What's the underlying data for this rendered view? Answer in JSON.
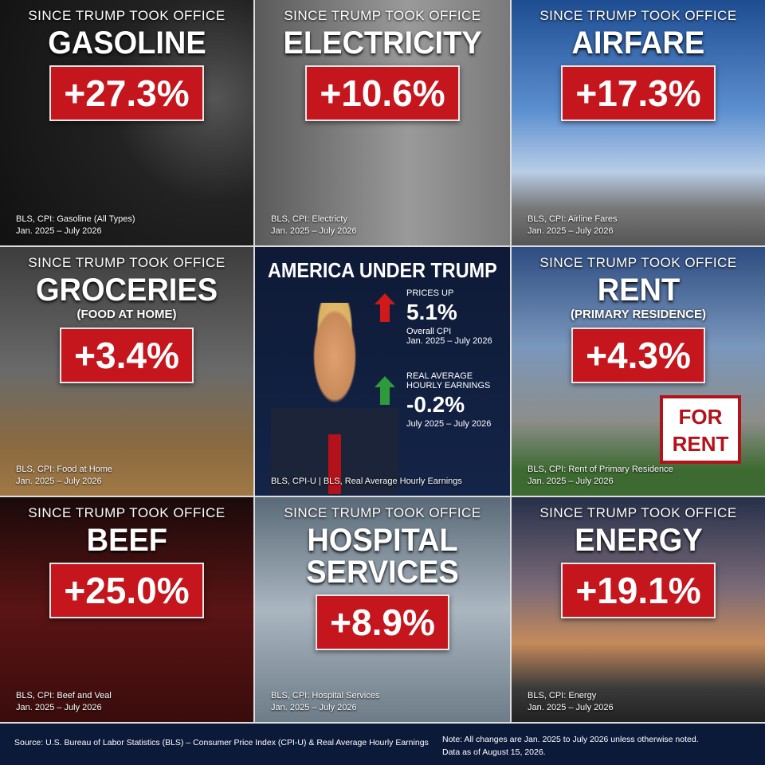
{
  "tiles": [
    {
      "kicker": "SINCE TRUMP TOOK OFFICE",
      "title": "GASOLINE",
      "change": "+27.3%",
      "source": "BLS, CPI: Gasoline (All Types)",
      "period": "Jan. 2025 – July 2026"
    },
    {
      "kicker": "SINCE TRUMP TOOK OFFICE",
      "title": "ELECTRICITY",
      "change": "+10.6%",
      "source": "BLS, CPI: Electricty",
      "period": "Jan. 2025 – July 2026"
    },
    {
      "kicker": "SINCE TRUMP TOOK OFFICE",
      "title": "AIRFARE",
      "change": "+17.3%",
      "source": "BLS, CPI: Airline Fares",
      "period": "Jan. 2025 – July 2026"
    },
    {
      "kicker": "SINCE TRUMP TOOK OFFICE",
      "title": "GROCERIES",
      "subtitle": "(FOOD AT HOME)",
      "change": "+3.4%",
      "source": "BLS, CPI: Food at Home",
      "period": "Jan. 2025 – July 2026"
    },
    {
      "center": true,
      "title": "AMERICA UNDER TRUMP",
      "items": [
        {
          "label": "PRICES UP",
          "value": "5.1%",
          "sub": "Overall CPI",
          "period": "Jan. 2025 – July 2026"
        },
        {
          "label": "REAL AVERAGE HOURLY EARNINGS",
          "value": "-0.2%",
          "period": "July 2025 – July 2026"
        }
      ],
      "source": "BLS, CPI-U | BLS, Real Average Hourly Earnings"
    },
    {
      "kicker": "SINCE TRUMP TOOK OFFICE",
      "title": "RENT",
      "subtitle": "(PRIMARY RESIDENCE)",
      "change": "+4.3%",
      "sign": [
        "FOR",
        "RENT"
      ],
      "source": "BLS, CPI: Rent of Primary Residence",
      "period": "Jan. 2025 – July 2026"
    },
    {
      "kicker": "SINCE TRUMP TOOK OFFICE",
      "title": "BEEF",
      "change": "+25.0%",
      "source": "BLS, CPI: Beef and Veal",
      "period": "Jan. 2025 – July 2026"
    },
    {
      "kicker": "SINCE TRUMP TOOK OFFICE",
      "title": "HOSPITAL SERVICES",
      "change": "+8.9%",
      "source": "BLS, CPI: Hospital Services",
      "period": "Jan. 2025 – July 2026"
    },
    {
      "kicker": "SINCE TRUMP TOOK OFFICE",
      "title": "ENERGY",
      "change": "+19.1%",
      "source": "BLS, CPI: Energy",
      "period": "Jan. 2025 – July 2026"
    }
  ],
  "footer": {
    "source": "Source: U.S. Bureau of Labor Statistics (BLS) – Consumer Price Index (CPI-U) & Real Average Hourly Earnings",
    "note": [
      "Note: All changes are Jan. 2025 to July 2026 unless otherwise noted.",
      "Data as of August 15, 2026."
    ]
  }
}
